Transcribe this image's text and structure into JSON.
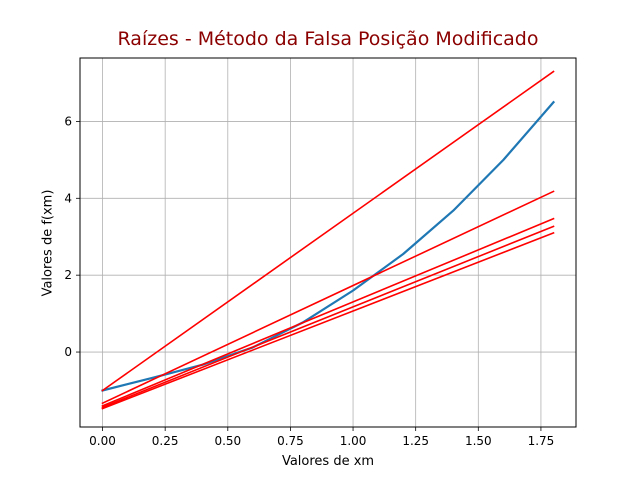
{
  "chart_data": {
    "type": "line",
    "title": "Raízes - Método da Falsa Posição Modificado",
    "xlabel": "Valores de xm",
    "ylabel": "Valores de f(xm)",
    "xlim": [
      -0.09,
      1.89
    ],
    "ylim": [
      -1.95,
      7.65
    ],
    "xticks": [
      0.0,
      0.25,
      0.5,
      0.75,
      1.0,
      1.25,
      1.5,
      1.75
    ],
    "xtick_labels": [
      "0.00",
      "0.25",
      "0.50",
      "0.75",
      "1.00",
      "1.25",
      "1.50",
      "1.75"
    ],
    "yticks": [
      0,
      2,
      4,
      6
    ],
    "ytick_labels": [
      "0",
      "2",
      "4",
      "6"
    ],
    "grid": true,
    "series": [
      {
        "color": "#1f77b4",
        "x": [
          0.0,
          0.2,
          0.4,
          0.6,
          0.8,
          1.0,
          1.2,
          1.4,
          1.6,
          1.8
        ],
        "y": [
          -1.0,
          -0.67,
          -0.33,
          0.12,
          0.77,
          1.6,
          2.55,
          3.68,
          5.0,
          6.5
        ]
      },
      {
        "color": "#ff0000",
        "x": [
          0.0,
          1.8
        ],
        "y": [
          -1.0,
          7.3
        ]
      },
      {
        "color": "#ff0000",
        "x": [
          0.0,
          1.8
        ],
        "y": [
          -1.33,
          4.18
        ]
      },
      {
        "color": "#ff0000",
        "x": [
          0.0,
          1.8
        ],
        "y": [
          -1.4,
          3.47
        ]
      },
      {
        "color": "#ff0000",
        "x": [
          0.0,
          1.8
        ],
        "y": [
          -1.44,
          3.27
        ]
      },
      {
        "color": "#ff0000",
        "x": [
          0.0,
          1.8
        ],
        "y": [
          -1.47,
          3.1
        ]
      }
    ]
  }
}
